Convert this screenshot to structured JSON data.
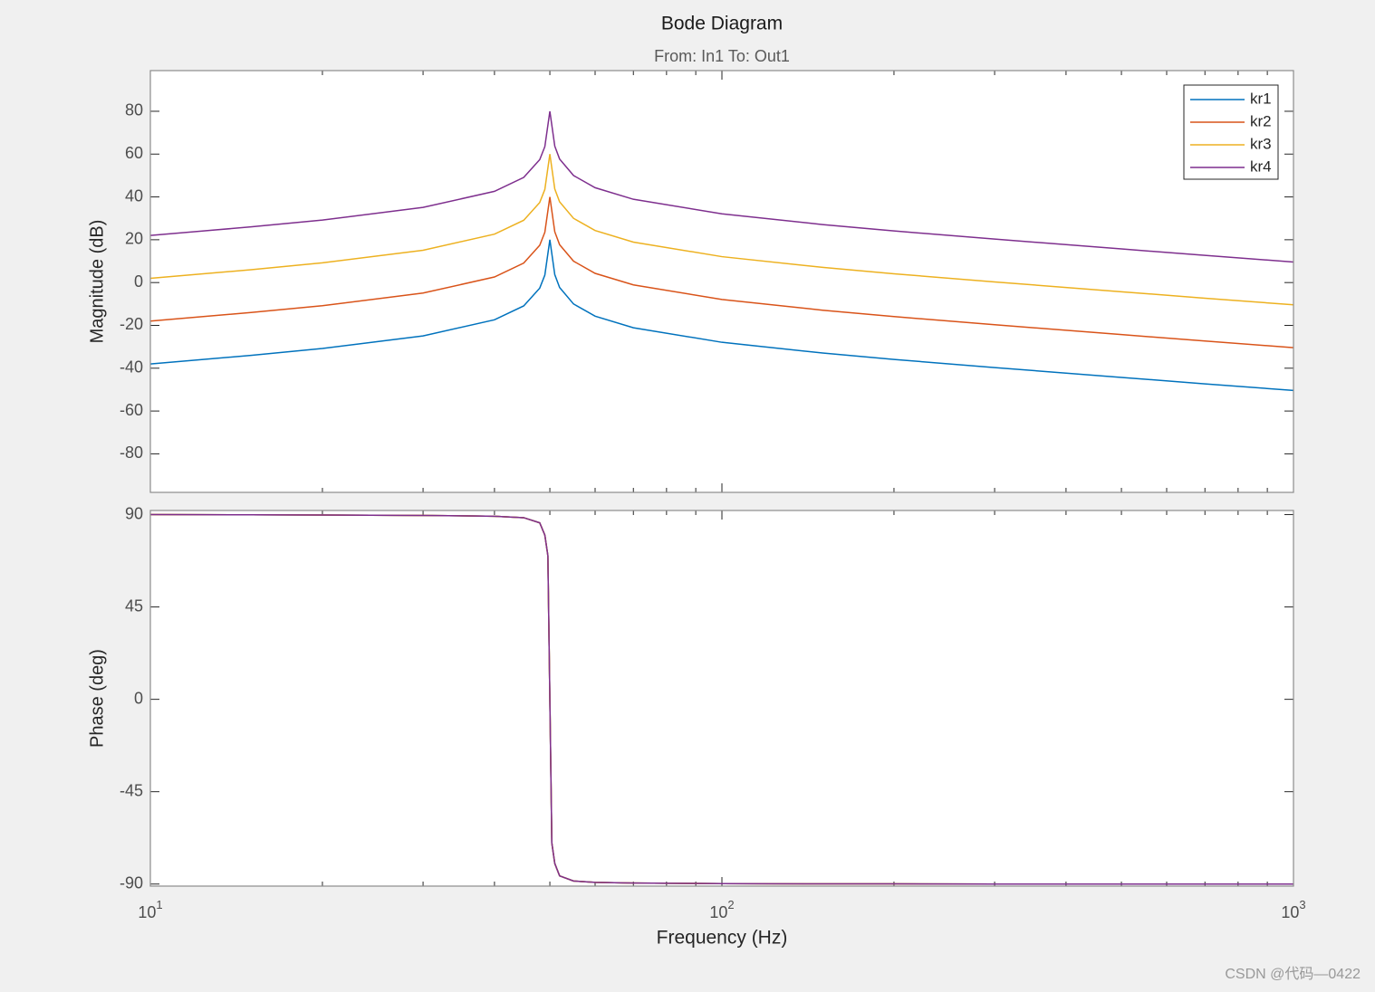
{
  "chart_data": [
    {
      "type": "line",
      "title": "Bode Diagram",
      "subtitle": "From: In1  To: Out1",
      "ylabel": "Magnitude (dB)",
      "x": [
        10,
        15,
        20,
        30,
        40,
        45,
        48,
        49,
        50,
        51,
        52,
        55,
        60,
        70,
        100,
        150,
        200,
        300,
        500,
        700,
        1000
      ],
      "series": [
        {
          "name": "kr1",
          "color": "#0072BD",
          "values": [
            -38,
            -34,
            -30.8,
            -24.9,
            -17.4,
            -10.9,
            -2.6,
            3.5,
            20,
            3.7,
            -2.3,
            -10,
            -15.7,
            -21.1,
            -27.9,
            -32.9,
            -35.9,
            -39.7,
            -44.3,
            -47.3,
            -50.4
          ]
        },
        {
          "name": "kr2",
          "color": "#D95319",
          "values": [
            -18,
            -14,
            -10.8,
            -4.9,
            2.6,
            9.1,
            17.4,
            23.5,
            40,
            23.7,
            17.7,
            10,
            4.3,
            -1.1,
            -7.9,
            -12.9,
            -15.9,
            -19.7,
            -24.3,
            -27.3,
            -30.4
          ]
        },
        {
          "name": "kr3",
          "color": "#EDB120",
          "values": [
            2,
            6,
            9.2,
            15.1,
            22.6,
            29.1,
            37.4,
            43.5,
            60,
            43.7,
            37.7,
            30,
            24.3,
            18.9,
            12.1,
            7.1,
            4.1,
            0.3,
            -4.3,
            -7.3,
            -10.4
          ]
        },
        {
          "name": "kr4",
          "color": "#7E2F8E",
          "values": [
            22,
            26,
            29.2,
            35.1,
            42.6,
            49.1,
            57.4,
            63.5,
            80,
            63.7,
            57.7,
            50,
            44.3,
            38.9,
            32.1,
            27.1,
            24.1,
            20.3,
            15.7,
            12.7,
            9.6
          ]
        }
      ],
      "xscale": "log",
      "xlim": [
        10,
        1000
      ],
      "xticks": [
        10,
        100,
        1000
      ],
      "xminorticks": [
        20,
        30,
        40,
        50,
        60,
        70,
        80,
        90,
        200,
        300,
        400,
        500,
        600,
        700,
        800,
        900
      ],
      "ylim": [
        -98,
        99
      ],
      "yticks": [
        -80,
        -60,
        -40,
        -20,
        0,
        20,
        40,
        60,
        80
      ],
      "legend": "northeast"
    },
    {
      "type": "line",
      "ylabel": "Phase (deg)",
      "xlabel": "Frequency  (Hz)",
      "x": [
        10,
        15,
        20,
        30,
        40,
        45,
        48,
        49,
        49.6,
        50,
        50.4,
        51,
        52,
        55,
        60,
        70,
        100,
        150,
        200,
        300,
        500,
        700,
        1000
      ],
      "series": [
        {
          "name": "kr1",
          "color": "#0072BD",
          "values": [
            90,
            89.9,
            89.8,
            89.6,
            89.2,
            88.5,
            86,
            80,
            70,
            0,
            -70,
            -80,
            -86,
            -88.5,
            -89.2,
            -89.5,
            -89.8,
            -89.9,
            -89.9,
            -90,
            -90,
            -90,
            -90
          ]
        },
        {
          "name": "kr2",
          "color": "#D95319",
          "values": [
            90,
            89.9,
            89.8,
            89.6,
            89.2,
            88.5,
            86,
            80,
            70,
            0,
            -70,
            -80,
            -86,
            -88.5,
            -89.2,
            -89.5,
            -89.8,
            -89.9,
            -89.9,
            -90,
            -90,
            -90,
            -90
          ]
        },
        {
          "name": "kr3",
          "color": "#EDB120",
          "values": [
            90,
            89.9,
            89.8,
            89.6,
            89.2,
            88.5,
            86,
            80,
            70,
            0,
            -70,
            -80,
            -86,
            -88.5,
            -89.2,
            -89.5,
            -89.8,
            -89.9,
            -89.9,
            -90,
            -90,
            -90,
            -90
          ]
        },
        {
          "name": "kr4",
          "color": "#7E2F8E",
          "values": [
            90,
            89.9,
            89.8,
            89.6,
            89.2,
            88.5,
            86,
            80,
            70,
            0,
            -70,
            -80,
            -86,
            -88.5,
            -89.2,
            -89.5,
            -89.8,
            -89.9,
            -89.9,
            -90,
            -90,
            -90,
            -90
          ]
        }
      ],
      "xscale": "log",
      "xlim": [
        10,
        1000
      ],
      "xticks": [
        {
          "value": 10,
          "label": "10",
          "exponent": "1"
        },
        {
          "value": 100,
          "label": "10",
          "exponent": "2"
        },
        {
          "value": 1000,
          "label": "10",
          "exponent": "3"
        }
      ],
      "xminorticks": [
        20,
        30,
        40,
        50,
        60,
        70,
        80,
        90,
        200,
        300,
        400,
        500,
        600,
        700,
        800,
        900
      ],
      "ylim": [
        -91,
        92
      ],
      "yticks": [
        -90,
        -45,
        0,
        45,
        90
      ]
    }
  ],
  "watermark": "CSDN @代码—0422"
}
